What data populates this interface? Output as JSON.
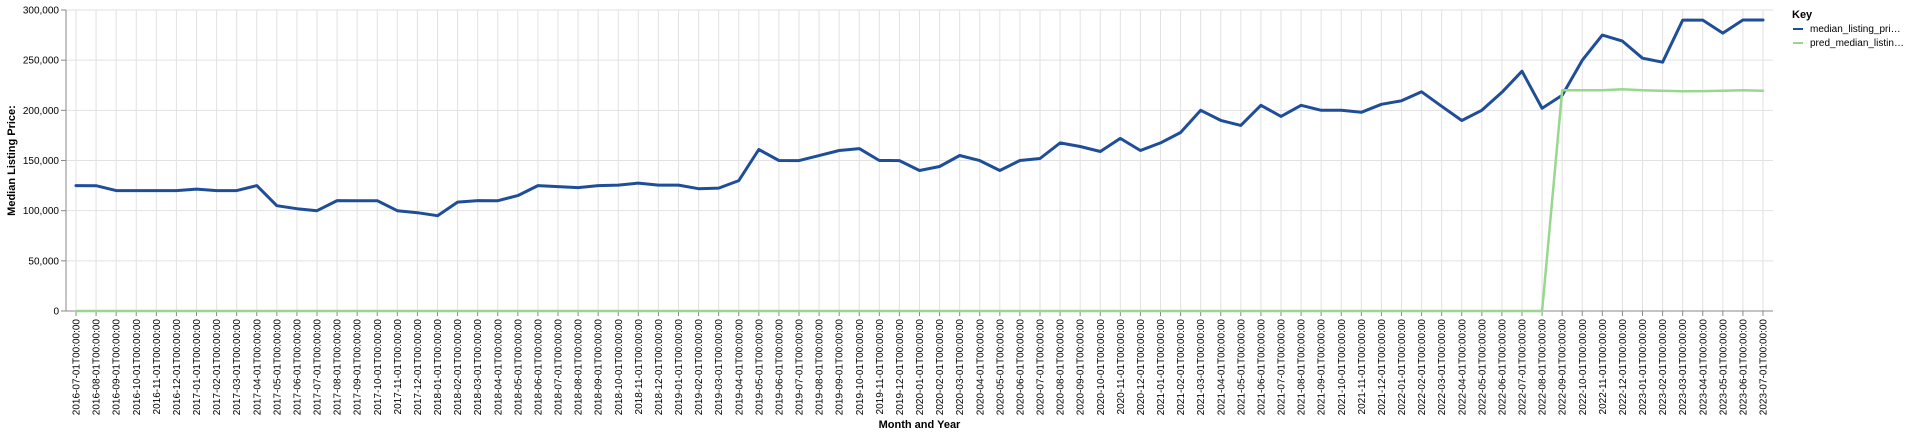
{
  "chart_data": {
    "type": "line",
    "xlabel": "Month and Year",
    "ylabel": "Median Listing Price:",
    "ylim": [
      0,
      300000
    ],
    "yticks": [
      "0",
      "50,000",
      "100,000",
      "150,000",
      "200,000",
      "250,000",
      "300,000"
    ],
    "grid": true,
    "legend_title": "Key",
    "legend_position": "top-right",
    "x": [
      "2016-07-01T00:00:00",
      "2016-08-01T00:00:00",
      "2016-09-01T00:00:00",
      "2016-10-01T00:00:00",
      "2016-11-01T00:00:00",
      "2016-12-01T00:00:00",
      "2017-01-01T00:00:00",
      "2017-02-01T00:00:00",
      "2017-03-01T00:00:00",
      "2017-04-01T00:00:00",
      "2017-05-01T00:00:00",
      "2017-06-01T00:00:00",
      "2017-07-01T00:00:00",
      "2017-08-01T00:00:00",
      "2017-09-01T00:00:00",
      "2017-10-01T00:00:00",
      "2017-11-01T00:00:00",
      "2017-12-01T00:00:00",
      "2018-01-01T00:00:00",
      "2018-02-01T00:00:00",
      "2018-03-01T00:00:00",
      "2018-04-01T00:00:00",
      "2018-05-01T00:00:00",
      "2018-06-01T00:00:00",
      "2018-07-01T00:00:00",
      "2018-08-01T00:00:00",
      "2018-09-01T00:00:00",
      "2018-10-01T00:00:00",
      "2018-11-01T00:00:00",
      "2018-12-01T00:00:00",
      "2019-01-01T00:00:00",
      "2019-02-01T00:00:00",
      "2019-03-01T00:00:00",
      "2019-04-01T00:00:00",
      "2019-05-01T00:00:00",
      "2019-06-01T00:00:00",
      "2019-07-01T00:00:00",
      "2019-08-01T00:00:00",
      "2019-09-01T00:00:00",
      "2019-10-01T00:00:00",
      "2019-11-01T00:00:00",
      "2019-12-01T00:00:00",
      "2020-01-01T00:00:00",
      "2020-02-01T00:00:00",
      "2020-03-01T00:00:00",
      "2020-04-01T00:00:00",
      "2020-05-01T00:00:00",
      "2020-06-01T00:00:00",
      "2020-07-01T00:00:00",
      "2020-08-01T00:00:00",
      "2020-09-01T00:00:00",
      "2020-10-01T00:00:00",
      "2020-11-01T00:00:00",
      "2020-12-01T00:00:00",
      "2021-01-01T00:00:00",
      "2021-02-01T00:00:00",
      "2021-03-01T00:00:00",
      "2021-04-01T00:00:00",
      "2021-05-01T00:00:00",
      "2021-06-01T00:00:00",
      "2021-07-01T00:00:00",
      "2021-08-01T00:00:00",
      "2021-09-01T00:00:00",
      "2021-10-01T00:00:00",
      "2021-11-01T00:00:00",
      "2021-12-01T00:00:00",
      "2022-01-01T00:00:00",
      "2022-02-01T00:00:00",
      "2022-03-01T00:00:00",
      "2022-04-01T00:00:00",
      "2022-05-01T00:00:00",
      "2022-06-01T00:00:00",
      "2022-07-01T00:00:00",
      "2022-08-01T00:00:00",
      "2022-09-01T00:00:00",
      "2022-10-01T00:00:00",
      "2022-11-01T00:00:00",
      "2022-12-01T00:00:00",
      "2023-01-01T00:00:00",
      "2023-02-01T00:00:00",
      "2023-03-01T00:00:00",
      "2023-04-01T00:00:00",
      "2023-05-01T00:00:00",
      "2023-06-01T00:00:00",
      "2023-07-01T00:00:00"
    ],
    "series": [
      {
        "name": "median_listing_pri…",
        "color": "#1f4e99",
        "values": [
          125000,
          124900,
          120000,
          120000,
          120000,
          120000,
          121500,
          120000,
          120000,
          125000,
          105000,
          102000,
          100000,
          110000,
          109900,
          109900,
          100000,
          98000,
          95000,
          108500,
          110000,
          109900,
          115000,
          125000,
          124000,
          123000,
          125000,
          125500,
          127500,
          125500,
          125500,
          121900,
          122500,
          130000,
          161000,
          150000,
          149900,
          154900,
          160000,
          161900,
          150000,
          149900,
          140000,
          144000,
          155000,
          149900,
          140000,
          150000,
          152000,
          167500,
          164000,
          159000,
          172000,
          160000,
          167500,
          177900,
          200000,
          190000,
          185000,
          205000,
          194000,
          205000,
          200000,
          200000,
          198000,
          206000,
          209500,
          218500,
          204000,
          189900,
          200000,
          218000,
          239000,
          202000,
          215000,
          250000,
          275000,
          269000,
          252000,
          248000,
          289900,
          289900,
          277000,
          290000,
          290000
        ]
      },
      {
        "name": "pred_median_listin…",
        "color": "#98d88e",
        "values": [
          0,
          0,
          0,
          0,
          0,
          0,
          0,
          0,
          0,
          0,
          0,
          0,
          0,
          0,
          0,
          0,
          0,
          0,
          0,
          0,
          0,
          0,
          0,
          0,
          0,
          0,
          0,
          0,
          0,
          0,
          0,
          0,
          0,
          0,
          0,
          0,
          0,
          0,
          0,
          0,
          0,
          0,
          0,
          0,
          0,
          0,
          0,
          0,
          0,
          0,
          0,
          0,
          0,
          0,
          0,
          0,
          0,
          0,
          0,
          0,
          0,
          0,
          0,
          0,
          0,
          0,
          0,
          0,
          0,
          0,
          0,
          0,
          0,
          0,
          220000,
          220000,
          220000,
          221000,
          220000,
          219500,
          219000,
          219200,
          219500,
          220000,
          219500
        ]
      }
    ]
  }
}
